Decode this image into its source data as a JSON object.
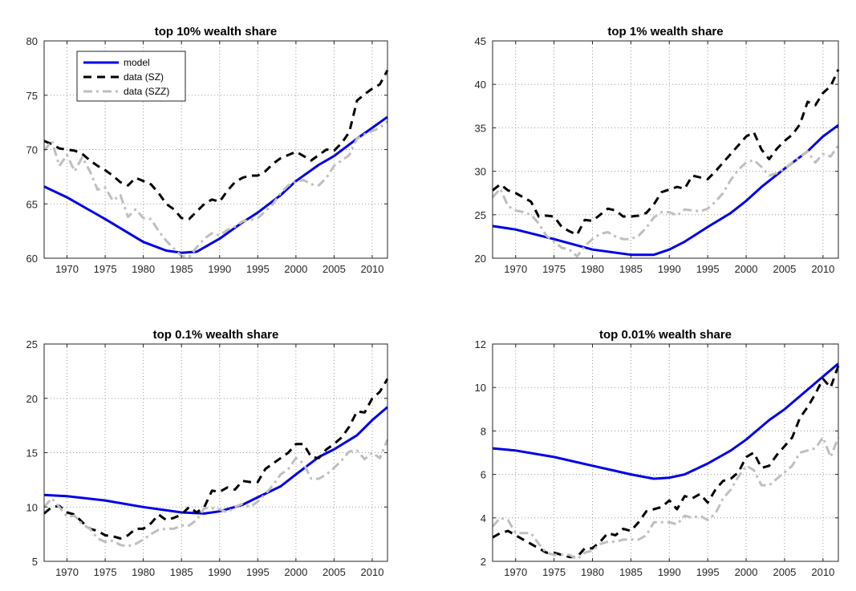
{
  "figure": {
    "colors": {
      "model": "#0000e6",
      "data_sz": "#000000",
      "data_szz": "#bfbfbf"
    }
  },
  "legend": {
    "entries": [
      "model",
      "data (SZ)",
      "data (SZZ)"
    ],
    "placement": "top-left of first panel"
  },
  "chart_data": [
    {
      "type": "line",
      "title": "top 10% wealth share",
      "xlim": [
        1967,
        2012
      ],
      "ylim": [
        60,
        80
      ],
      "xticks": [
        1970,
        1975,
        1980,
        1985,
        1990,
        1995,
        2000,
        2005,
        2010
      ],
      "yticks": [
        60,
        65,
        70,
        75,
        80
      ],
      "grid": true,
      "series": [
        {
          "name": "model",
          "style": "solid",
          "x": [
            1967,
            1970,
            1975,
            1980,
            1983,
            1985,
            1987,
            1990,
            1993,
            1995,
            1998,
            2000,
            2003,
            2005,
            2008,
            2010,
            2012
          ],
          "y": [
            66.6,
            65.6,
            63.6,
            61.5,
            60.7,
            60.5,
            60.6,
            61.8,
            63.3,
            64.2,
            65.8,
            67.1,
            68.6,
            69.4,
            71.0,
            72.0,
            73.0
          ]
        },
        {
          "name": "data (SZ)",
          "style": "dashed",
          "x": [
            1967,
            1968,
            1969,
            1970,
            1971,
            1972,
            1973,
            1974,
            1975,
            1976,
            1977,
            1978,
            1979,
            1980,
            1981,
            1982,
            1983,
            1984,
            1985,
            1986,
            1987,
            1988,
            1989,
            1990,
            1991,
            1992,
            1993,
            1994,
            1995,
            1996,
            1997,
            1998,
            1999,
            2000,
            2001,
            2002,
            2003,
            2004,
            2005,
            2006,
            2007,
            2008,
            2009,
            2010,
            2011,
            2012
          ],
          "y": [
            70.8,
            70.5,
            70.1,
            70.0,
            69.9,
            69.6,
            69.0,
            68.5,
            68.1,
            67.6,
            67.0,
            66.7,
            67.4,
            67.1,
            66.8,
            66.0,
            65.0,
            64.5,
            63.7,
            63.6,
            64.3,
            65.0,
            65.4,
            65.2,
            66.2,
            67.0,
            67.4,
            67.6,
            67.6,
            68.0,
            68.7,
            69.2,
            69.5,
            69.8,
            69.4,
            69.0,
            69.5,
            70.0,
            69.9,
            70.6,
            71.6,
            74.5,
            75.1,
            75.6,
            76.0,
            77.3
          ]
        },
        {
          "name": "data (SZZ)",
          "style": "dashdot",
          "x": [
            1967,
            1968,
            1969,
            1970,
            1971,
            1972,
            1973,
            1974,
            1975,
            1976,
            1977,
            1978,
            1979,
            1980,
            1981,
            1982,
            1983,
            1984,
            1985,
            1986,
            1987,
            1988,
            1989,
            1990,
            1991,
            1992,
            1993,
            1994,
            1995,
            1996,
            1997,
            1998,
            1999,
            2000,
            2001,
            2002,
            2003,
            2004,
            2005,
            2006,
            2007,
            2008,
            2009,
            2010,
            2011,
            2012
          ],
          "y": [
            69.9,
            70.8,
            68.5,
            69.5,
            68.0,
            69.3,
            68.0,
            66.3,
            66.5,
            65.3,
            65.8,
            63.8,
            64.5,
            63.7,
            63.6,
            62.5,
            61.6,
            60.9,
            60.2,
            60.1,
            61.0,
            61.8,
            62.3,
            62.1,
            62.6,
            62.9,
            63.4,
            63.5,
            63.7,
            64.3,
            65.0,
            66.0,
            66.7,
            67.0,
            67.2,
            66.8,
            66.7,
            67.4,
            68.5,
            69.0,
            69.5,
            71.0,
            71.4,
            71.7,
            72.0,
            72.6
          ]
        }
      ]
    },
    {
      "type": "line",
      "title": "top 1% wealth share",
      "xlim": [
        1967,
        2012
      ],
      "ylim": [
        20,
        45
      ],
      "xticks": [
        1970,
        1975,
        1980,
        1985,
        1990,
        1995,
        2000,
        2005,
        2010
      ],
      "yticks": [
        20,
        25,
        30,
        35,
        40,
        45
      ],
      "grid": true,
      "series": [
        {
          "name": "model",
          "style": "solid",
          "x": [
            1967,
            1970,
            1975,
            1980,
            1985,
            1988,
            1990,
            1992,
            1995,
            1998,
            2000,
            2002,
            2005,
            2008,
            2010,
            2012
          ],
          "y": [
            23.7,
            23.3,
            22.2,
            21.0,
            20.4,
            20.4,
            21.0,
            21.9,
            23.6,
            25.2,
            26.6,
            28.2,
            30.3,
            32.3,
            34.0,
            35.3
          ]
        },
        {
          "name": "data (SZ)",
          "style": "dashed",
          "x": [
            1967,
            1968,
            1969,
            1970,
            1971,
            1972,
            1973,
            1974,
            1975,
            1976,
            1977,
            1978,
            1979,
            1980,
            1981,
            1982,
            1983,
            1984,
            1985,
            1986,
            1987,
            1988,
            1989,
            1990,
            1991,
            1992,
            1993,
            1994,
            1995,
            1996,
            1997,
            1998,
            1999,
            2000,
            2001,
            2002,
            2003,
            2004,
            2005,
            2006,
            2007,
            2008,
            2009,
            2010,
            2011,
            2012
          ],
          "y": [
            27.8,
            28.5,
            27.8,
            27.5,
            27.0,
            26.5,
            24.8,
            24.9,
            24.8,
            23.6,
            23.1,
            22.7,
            24.4,
            24.3,
            25.0,
            25.7,
            25.5,
            24.8,
            24.8,
            24.9,
            25.2,
            26.2,
            27.6,
            27.9,
            28.2,
            28.0,
            29.5,
            29.3,
            29.1,
            30.0,
            31.0,
            32.0,
            33.0,
            34.0,
            34.5,
            32.5,
            31.4,
            32.6,
            33.5,
            34.2,
            35.4,
            38.0,
            37.6,
            39.0,
            39.8,
            41.7
          ]
        },
        {
          "name": "data (SZZ)",
          "style": "dashdot",
          "x": [
            1967,
            1968,
            1969,
            1970,
            1971,
            1972,
            1973,
            1974,
            1975,
            1976,
            1977,
            1978,
            1979,
            1980,
            1981,
            1982,
            1983,
            1984,
            1985,
            1986,
            1987,
            1988,
            1989,
            1990,
            1991,
            1992,
            1993,
            1994,
            1995,
            1996,
            1997,
            1998,
            1999,
            2000,
            2001,
            2002,
            2003,
            2004,
            2005,
            2006,
            2007,
            2008,
            2009,
            2010,
            2011,
            2012
          ],
          "y": [
            27.0,
            28.0,
            26.0,
            25.5,
            25.3,
            25.0,
            24.0,
            22.6,
            21.9,
            21.2,
            21.0,
            20.2,
            21.4,
            22.2,
            22.8,
            23.0,
            22.5,
            22.2,
            22.2,
            22.6,
            23.5,
            24.7,
            25.3,
            25.3,
            24.9,
            25.6,
            25.5,
            25.4,
            25.7,
            26.5,
            27.5,
            29.0,
            30.2,
            31.0,
            31.3,
            30.5,
            29.5,
            29.8,
            30.3,
            31.0,
            31.6,
            32.3,
            31.0,
            32.0,
            31.7,
            33.0
          ]
        }
      ]
    },
    {
      "type": "line",
      "title": "top 0.1% wealth share",
      "xlim": [
        1967,
        2012
      ],
      "ylim": [
        5,
        25
      ],
      "xticks": [
        1970,
        1975,
        1980,
        1985,
        1990,
        1995,
        2000,
        2005,
        2010
      ],
      "yticks": [
        5,
        10,
        15,
        20,
        25
      ],
      "grid": true,
      "series": [
        {
          "name": "model",
          "style": "solid",
          "x": [
            1967,
            1970,
            1975,
            1980,
            1985,
            1988,
            1990,
            1993,
            1995,
            1998,
            2000,
            2003,
            2005,
            2008,
            2010,
            2012
          ],
          "y": [
            11.1,
            11.0,
            10.6,
            10.0,
            9.5,
            9.4,
            9.6,
            10.2,
            10.9,
            11.9,
            13.0,
            14.6,
            15.3,
            16.6,
            18.0,
            19.2
          ]
        },
        {
          "name": "data (SZ)",
          "style": "dashed",
          "x": [
            1967,
            1968,
            1969,
            1970,
            1971,
            1972,
            1973,
            1974,
            1975,
            1976,
            1977,
            1978,
            1979,
            1980,
            1981,
            1982,
            1983,
            1984,
            1985,
            1986,
            1987,
            1988,
            1989,
            1990,
            1991,
            1992,
            1993,
            1994,
            1995,
            1996,
            1997,
            1998,
            1999,
            2000,
            2001,
            2002,
            2003,
            2004,
            2005,
            2006,
            2007,
            2008,
            2009,
            2010,
            2011,
            2012
          ],
          "y": [
            9.4,
            10.0,
            10.1,
            9.5,
            9.3,
            8.6,
            8.0,
            7.8,
            7.4,
            7.3,
            7.1,
            7.4,
            8.0,
            8.0,
            8.5,
            9.3,
            8.8,
            9.0,
            9.3,
            10.0,
            9.5,
            10.0,
            11.5,
            11.4,
            11.8,
            11.6,
            12.4,
            12.3,
            12.3,
            13.5,
            14.0,
            14.5,
            15.0,
            15.8,
            15.8,
            14.6,
            14.5,
            15.3,
            15.8,
            16.4,
            17.4,
            18.8,
            18.7,
            20.0,
            20.6,
            21.8
          ]
        },
        {
          "name": "data (SZZ)",
          "style": "dashdot",
          "x": [
            1967,
            1968,
            1969,
            1970,
            1971,
            1972,
            1973,
            1974,
            1975,
            1976,
            1977,
            1978,
            1979,
            1980,
            1981,
            1982,
            1983,
            1984,
            1985,
            1986,
            1987,
            1988,
            1989,
            1990,
            1991,
            1992,
            1993,
            1994,
            1995,
            1996,
            1997,
            1998,
            1999,
            2000,
            2001,
            2002,
            2003,
            2004,
            2005,
            2006,
            2007,
            2008,
            2009,
            2010,
            2011,
            2012
          ],
          "y": [
            10.0,
            10.8,
            10.0,
            9.1,
            9.2,
            8.4,
            8.0,
            7.1,
            6.8,
            6.9,
            6.5,
            6.4,
            6.6,
            7.0,
            7.5,
            7.9,
            8.0,
            8.0,
            8.3,
            8.3,
            8.8,
            9.9,
            9.9,
            9.8,
            9.5,
            10.0,
            10.3,
            10.0,
            10.5,
            11.2,
            12.0,
            13.0,
            13.5,
            14.5,
            14.0,
            12.6,
            12.6,
            13.0,
            13.6,
            14.3,
            15.1,
            15.2,
            14.4,
            15.0,
            14.5,
            16.2
          ]
        }
      ]
    },
    {
      "type": "line",
      "title": "top 0.01% wealth share",
      "xlim": [
        1967,
        2012
      ],
      "ylim": [
        2,
        12
      ],
      "xticks": [
        1970,
        1975,
        1980,
        1985,
        1990,
        1995,
        2000,
        2005,
        2010
      ],
      "yticks": [
        2,
        4,
        6,
        8,
        10,
        12
      ],
      "grid": true,
      "series": [
        {
          "name": "model",
          "style": "solid",
          "x": [
            1967,
            1970,
            1975,
            1980,
            1985,
            1988,
            1990,
            1992,
            1995,
            1998,
            2000,
            2003,
            2005,
            2008,
            2010,
            2012
          ],
          "y": [
            7.2,
            7.1,
            6.8,
            6.4,
            6.0,
            5.8,
            5.85,
            6.0,
            6.5,
            7.1,
            7.6,
            8.5,
            9.0,
            9.9,
            10.5,
            11.1
          ]
        },
        {
          "name": "data (SZ)",
          "style": "dashed",
          "x": [
            1967,
            1968,
            1969,
            1970,
            1971,
            1972,
            1973,
            1974,
            1975,
            1976,
            1977,
            1978,
            1979,
            1980,
            1981,
            1982,
            1983,
            1984,
            1985,
            1986,
            1987,
            1988,
            1989,
            1990,
            1991,
            1992,
            1993,
            1994,
            1995,
            1996,
            1997,
            1998,
            1999,
            2000,
            2001,
            2002,
            2003,
            2004,
            2005,
            2006,
            2007,
            2008,
            2009,
            2010,
            2011,
            2012
          ],
          "y": [
            3.1,
            3.3,
            3.4,
            3.2,
            3.0,
            2.8,
            2.6,
            2.4,
            2.4,
            2.3,
            2.2,
            2.2,
            2.6,
            2.6,
            2.9,
            3.3,
            3.2,
            3.5,
            3.4,
            3.8,
            4.3,
            4.4,
            4.5,
            4.8,
            4.4,
            5.0,
            4.9,
            5.1,
            4.7,
            5.3,
            5.7,
            5.8,
            6.1,
            6.8,
            7.0,
            6.3,
            6.4,
            6.9,
            7.3,
            7.7,
            8.6,
            9.1,
            9.7,
            10.4,
            10.0,
            11.0
          ]
        },
        {
          "name": "data (SZZ)",
          "style": "dashdot",
          "x": [
            1967,
            1968,
            1969,
            1970,
            1971,
            1972,
            1973,
            1974,
            1975,
            1976,
            1977,
            1978,
            1979,
            1980,
            1981,
            1982,
            1983,
            1984,
            1985,
            1986,
            1987,
            1988,
            1989,
            1990,
            1991,
            1992,
            1993,
            1994,
            1995,
            1996,
            1997,
            1998,
            1999,
            2000,
            2001,
            2002,
            2003,
            2004,
            2005,
            2006,
            2007,
            2008,
            2009,
            2010,
            2011,
            2012
          ],
          "y": [
            3.6,
            4.0,
            3.9,
            3.3,
            3.3,
            3.3,
            2.8,
            2.4,
            2.3,
            2.3,
            2.3,
            2.1,
            2.4,
            2.5,
            2.8,
            2.9,
            2.9,
            3.0,
            3.0,
            3.0,
            3.2,
            3.8,
            3.8,
            3.8,
            3.7,
            4.1,
            4.0,
            4.1,
            3.9,
            4.2,
            4.9,
            5.3,
            5.9,
            6.4,
            6.2,
            5.5,
            5.5,
            5.8,
            6.1,
            6.4,
            7.0,
            7.1,
            7.2,
            7.7,
            6.8,
            7.7
          ]
        }
      ]
    }
  ]
}
